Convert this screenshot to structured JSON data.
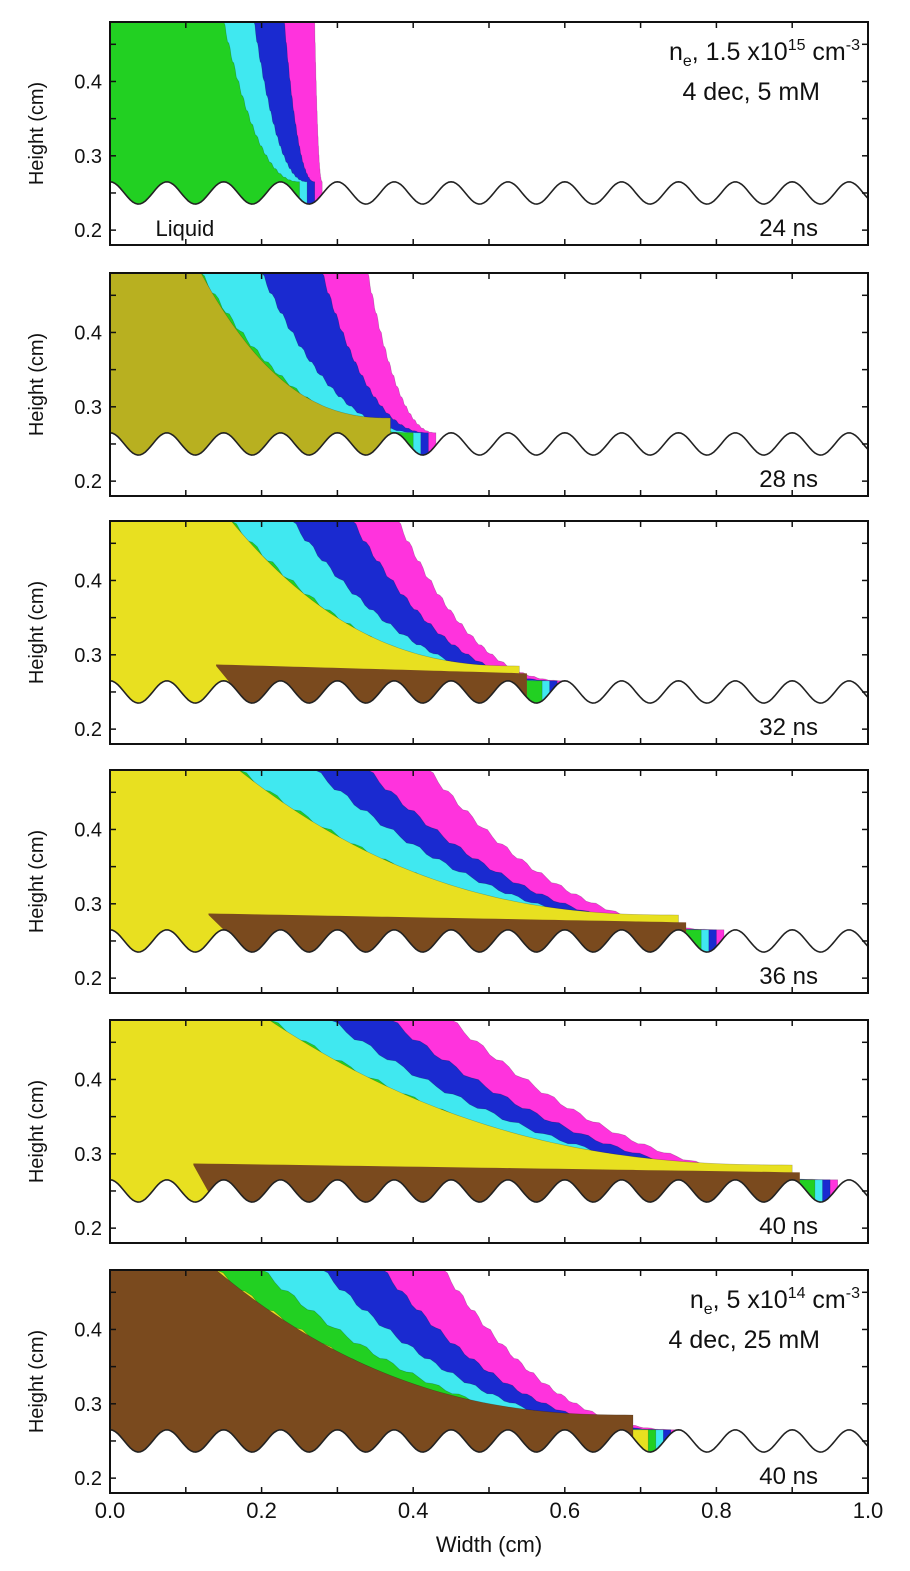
{
  "chart_data": {
    "type": "heatmap",
    "description_units": "contour bands given as the width (cm) at which each band boundary meets the top of the plot and the streamer front width (cm)",
    "xlabel": "Width (cm)",
    "ylabel": "Height (cm)",
    "xlim": [
      0.0,
      1.0
    ],
    "ylim": [
      0.18,
      0.48
    ],
    "x_ticks": [
      "0.0",
      "0.2",
      "0.4",
      "0.6",
      "0.8",
      "1.0"
    ],
    "y_ticks": [
      "0.2",
      "0.3",
      "0.4"
    ],
    "liquid_surface": {
      "label": "Liquid",
      "crest": 0.265,
      "trough": 0.235,
      "period": 0.075
    },
    "band_colors": {
      "magenta": "#ff33dd",
      "blue": "#1a2ad0",
      "cyan": "#40e8f0",
      "green": "#22d022",
      "yellow": "#e8e020",
      "olive": "#b8b020",
      "brown": "#7a4a1e"
    },
    "panels": [
      {
        "time": "24 ns",
        "front": 0.28,
        "annotation": {
          "line1_prefix": "n",
          "line1_sub": "e",
          "line1_mid": ", 1.5 x10",
          "line1_sup": "15",
          "line1_unit": " cm",
          "line1_unit_sup": "-3",
          "line2": "4 dec, 5 mM"
        },
        "bands": {
          "magenta": 0.27,
          "blue": 0.23,
          "cyan": 0.19,
          "green": 0.15
        },
        "fill": "green",
        "brown_layer_start": null
      },
      {
        "time": "28 ns",
        "front": 0.43,
        "bands": {
          "magenta": 0.34,
          "blue": 0.28,
          "cyan": 0.2,
          "green": 0.12
        },
        "fill": "olive",
        "brown_layer_start": null
      },
      {
        "time": "32 ns",
        "front": 0.6,
        "bands": {
          "magenta": 0.38,
          "blue": 0.32,
          "cyan": 0.24,
          "green": 0.16
        },
        "fill": "yellow",
        "brown_layer_start": 0.14
      },
      {
        "time": "36 ns",
        "front": 0.81,
        "bands": {
          "magenta": 0.42,
          "blue": 0.34,
          "cyan": 0.27,
          "green": 0.17
        },
        "fill": "yellow",
        "brown_layer_start": 0.13
      },
      {
        "time": "40 ns",
        "front": 0.96,
        "bands": {
          "magenta": 0.45,
          "blue": 0.37,
          "cyan": 0.29,
          "green": 0.21
        },
        "fill": "yellow",
        "brown_layer_start": 0.11
      },
      {
        "time": "40 ns",
        "front": 0.75,
        "annotation": {
          "line1_prefix": "n",
          "line1_sub": "e",
          "line1_mid": ", 5 x10",
          "line1_sup": "14",
          "line1_unit": " cm",
          "line1_unit_sup": "-3",
          "line2": "4 dec, 25 mM"
        },
        "bands": {
          "magenta": 0.44,
          "blue": 0.36,
          "cyan": 0.28,
          "green": 0.2,
          "yellow": 0.14
        },
        "fill": "brown",
        "brown_layer_start": 0.05
      }
    ]
  }
}
